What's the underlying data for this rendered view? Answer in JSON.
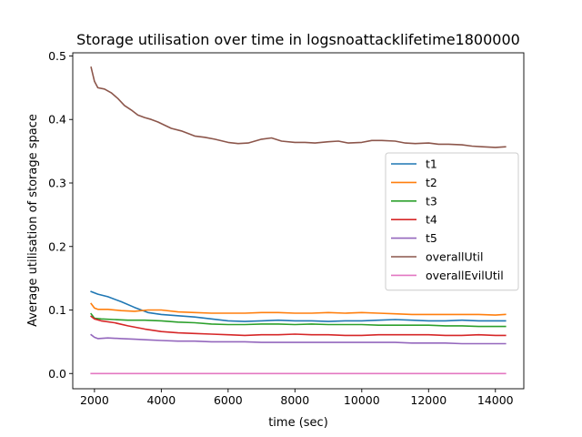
{
  "chart_data": {
    "type": "line",
    "title": "Storage utilisation over time in logsnoattacklifetime1800000",
    "xlabel": "time (sec)",
    "ylabel": "Average utilisation of storage space",
    "xlim": [
      1350,
      14850
    ],
    "ylim": [
      -0.024,
      0.505
    ],
    "xticks": [
      2000,
      4000,
      6000,
      8000,
      10000,
      12000,
      14000
    ],
    "xtick_labels": [
      "2000",
      "4000",
      "6000",
      "8000",
      "10000",
      "12000",
      "14000"
    ],
    "yticks": [
      0.0,
      0.1,
      0.2,
      0.3,
      0.4,
      0.5
    ],
    "ytick_labels": [
      "0.0",
      "0.1",
      "0.2",
      "0.3",
      "0.4",
      "0.5"
    ],
    "grid": false,
    "legend_position": "center-right",
    "series": [
      {
        "name": "t1",
        "color": "#1f77b4",
        "x": [
          1900,
          2100,
          2400,
          2800,
          3200,
          3600,
          4000,
          4500,
          5000,
          5500,
          6000,
          6500,
          7000,
          7500,
          8000,
          8500,
          9000,
          9500,
          10000,
          10500,
          11000,
          11500,
          12000,
          12500,
          13000,
          13500,
          14000,
          14300
        ],
        "y": [
          0.129,
          0.125,
          0.121,
          0.113,
          0.104,
          0.096,
          0.093,
          0.091,
          0.089,
          0.086,
          0.083,
          0.082,
          0.083,
          0.084,
          0.083,
          0.083,
          0.082,
          0.083,
          0.083,
          0.084,
          0.085,
          0.084,
          0.083,
          0.083,
          0.084,
          0.083,
          0.083,
          0.083
        ]
      },
      {
        "name": "t2",
        "color": "#ff7f0e",
        "x": [
          1900,
          2000,
          2100,
          2400,
          2800,
          3200,
          3600,
          4000,
          4500,
          5000,
          5500,
          6000,
          6500,
          7000,
          7500,
          8000,
          8500,
          9000,
          9500,
          10000,
          10500,
          11000,
          11500,
          12000,
          12500,
          13000,
          13500,
          14000,
          14300
        ],
        "y": [
          0.11,
          0.103,
          0.101,
          0.101,
          0.099,
          0.098,
          0.1,
          0.1,
          0.097,
          0.096,
          0.095,
          0.095,
          0.095,
          0.096,
          0.096,
          0.095,
          0.095,
          0.096,
          0.095,
          0.096,
          0.095,
          0.094,
          0.093,
          0.093,
          0.093,
          0.093,
          0.093,
          0.092,
          0.093
        ]
      },
      {
        "name": "t3",
        "color": "#2ca02c",
        "x": [
          1900,
          2000,
          2200,
          2600,
          3000,
          3500,
          4000,
          4500,
          5000,
          5500,
          6000,
          6500,
          7000,
          7500,
          8000,
          8500,
          9000,
          9500,
          10000,
          10500,
          11000,
          11500,
          12000,
          12500,
          13000,
          13500,
          14000,
          14300
        ],
        "y": [
          0.094,
          0.087,
          0.086,
          0.085,
          0.084,
          0.084,
          0.083,
          0.081,
          0.08,
          0.078,
          0.077,
          0.077,
          0.078,
          0.078,
          0.077,
          0.078,
          0.077,
          0.077,
          0.077,
          0.076,
          0.076,
          0.076,
          0.076,
          0.075,
          0.075,
          0.074,
          0.074,
          0.074
        ]
      },
      {
        "name": "t4",
        "color": "#d62728",
        "x": [
          1900,
          2000,
          2200,
          2600,
          3000,
          3500,
          4000,
          4500,
          5000,
          5500,
          6000,
          6500,
          7000,
          7500,
          8000,
          8500,
          9000,
          9500,
          10000,
          10500,
          11000,
          11500,
          12000,
          12500,
          13000,
          13500,
          14000,
          14300
        ],
        "y": [
          0.09,
          0.086,
          0.083,
          0.08,
          0.075,
          0.07,
          0.066,
          0.064,
          0.063,
          0.062,
          0.061,
          0.06,
          0.061,
          0.061,
          0.062,
          0.061,
          0.061,
          0.06,
          0.06,
          0.061,
          0.061,
          0.061,
          0.061,
          0.06,
          0.06,
          0.061,
          0.06,
          0.06
        ]
      },
      {
        "name": "t5",
        "color": "#9467bd",
        "x": [
          1900,
          2000,
          2100,
          2400,
          2800,
          3200,
          3600,
          4000,
          4500,
          5000,
          5500,
          6000,
          6500,
          7000,
          7500,
          8000,
          8500,
          9000,
          9500,
          10000,
          10500,
          11000,
          11500,
          12000,
          12500,
          13000,
          13500,
          14000,
          14300
        ],
        "y": [
          0.061,
          0.057,
          0.055,
          0.056,
          0.055,
          0.054,
          0.053,
          0.052,
          0.051,
          0.051,
          0.05,
          0.05,
          0.05,
          0.049,
          0.049,
          0.049,
          0.049,
          0.049,
          0.049,
          0.049,
          0.049,
          0.049,
          0.048,
          0.048,
          0.048,
          0.047,
          0.047,
          0.047,
          0.047
        ]
      },
      {
        "name": "overallUtil",
        "color": "#8c564b",
        "x": [
          1900,
          2000,
          2100,
          2300,
          2500,
          2700,
          2900,
          3100,
          3300,
          3500,
          3700,
          3900,
          4100,
          4300,
          4600,
          5000,
          5300,
          5600,
          6000,
          6300,
          6600,
          7000,
          7300,
          7600,
          8000,
          8300,
          8600,
          9000,
          9300,
          9600,
          10000,
          10300,
          10600,
          11000,
          11300,
          11600,
          12000,
          12300,
          12600,
          13000,
          13300,
          13600,
          14000,
          14300
        ],
        "y": [
          0.482,
          0.46,
          0.45,
          0.448,
          0.442,
          0.433,
          0.422,
          0.415,
          0.407,
          0.403,
          0.4,
          0.396,
          0.391,
          0.386,
          0.382,
          0.374,
          0.372,
          0.369,
          0.364,
          0.362,
          0.363,
          0.369,
          0.371,
          0.366,
          0.364,
          0.364,
          0.363,
          0.365,
          0.366,
          0.363,
          0.364,
          0.367,
          0.367,
          0.366,
          0.363,
          0.362,
          0.363,
          0.361,
          0.361,
          0.36,
          0.358,
          0.357,
          0.356,
          0.357
        ]
      },
      {
        "name": "overallEvilUtil",
        "color": "#e377c2",
        "x": [
          1900,
          14300
        ],
        "y": [
          0.0,
          0.0
        ]
      }
    ]
  }
}
